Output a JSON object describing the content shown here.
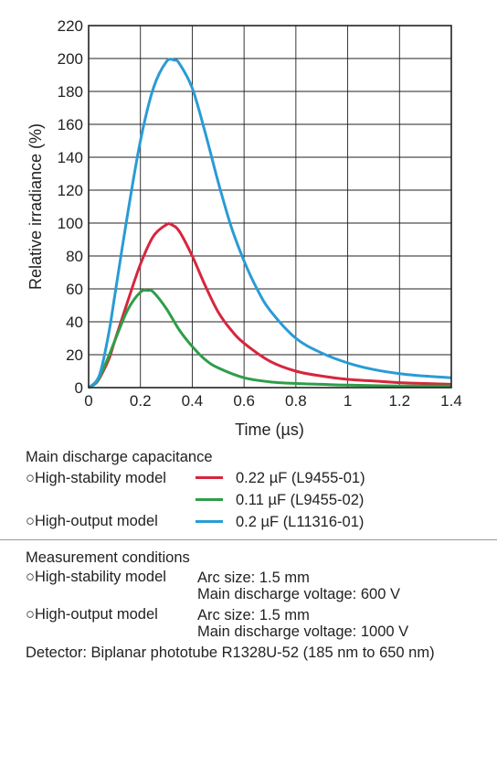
{
  "chart_data": {
    "type": "line",
    "xlabel": "Time (µs)",
    "ylabel": "Relative irradiance (%)",
    "xlim": [
      0,
      1.4
    ],
    "ylim": [
      0,
      220
    ],
    "xticks": [
      "0",
      "0.2",
      "0.4",
      "0.6",
      "0.8",
      "1",
      "1.2",
      "1.4"
    ],
    "yticks": [
      "0",
      "20",
      "40",
      "60",
      "80",
      "100",
      "120",
      "140",
      "160",
      "180",
      "200",
      "220"
    ],
    "grid": true,
    "series": [
      {
        "name": "0.22 µF (L9455-01)",
        "color": "#d7263d",
        "x": [
          0,
          0.03,
          0.05,
          0.08,
          0.1,
          0.15,
          0.2,
          0.25,
          0.3,
          0.32,
          0.35,
          0.4,
          0.45,
          0.5,
          0.55,
          0.6,
          0.7,
          0.8,
          0.9,
          1.0,
          1.1,
          1.2,
          1.3,
          1.4
        ],
        "y": [
          0,
          3,
          8,
          18,
          28,
          52,
          75,
          92,
          99,
          99,
          95,
          80,
          62,
          46,
          35,
          27,
          16,
          10,
          7,
          5,
          4,
          3,
          2.5,
          2
        ]
      },
      {
        "name": "0.11 µF (L9455-02)",
        "color": "#2e9e48",
        "x": [
          0,
          0.03,
          0.05,
          0.08,
          0.1,
          0.15,
          0.2,
          0.23,
          0.25,
          0.3,
          0.35,
          0.4,
          0.45,
          0.5,
          0.6,
          0.7,
          0.8,
          0.9,
          1.0,
          1.2,
          1.4
        ],
        "y": [
          0,
          3,
          9,
          20,
          28,
          47,
          58,
          59,
          58,
          48,
          35,
          25,
          17,
          12,
          6,
          3.5,
          2.5,
          2,
          1.5,
          1,
          1
        ]
      },
      {
        "name": "0.2 µF (L11316-01)",
        "color": "#2a9bd6",
        "x": [
          0,
          0.03,
          0.05,
          0.08,
          0.1,
          0.15,
          0.2,
          0.25,
          0.3,
          0.33,
          0.35,
          0.4,
          0.45,
          0.5,
          0.55,
          0.6,
          0.65,
          0.7,
          0.8,
          0.9,
          1.0,
          1.1,
          1.2,
          1.3,
          1.4
        ],
        "y": [
          0,
          4,
          12,
          35,
          55,
          105,
          150,
          182,
          198,
          199,
          197,
          182,
          155,
          125,
          98,
          77,
          60,
          47,
          30,
          21,
          15,
          11,
          8.5,
          7,
          6
        ]
      }
    ]
  },
  "legend": {
    "heading": "Main discharge capacitance",
    "stability_label": "○High-stability model",
    "output_label": "○High-output model",
    "entries": [
      "0.22 µF (L9455-01)",
      "0.11 µF (L9455-02)",
      "0.2 µF (L11316-01)"
    ],
    "colors": [
      "#d7263d",
      "#2e9e48",
      "#2a9bd6"
    ]
  },
  "conditions": {
    "heading": "Measurement conditions",
    "stability_label": "○High-stability model",
    "stability_arc": "Arc size: 1.5 mm",
    "stability_voltage": "Main discharge voltage: 600 V",
    "output_label": "○High-output model",
    "output_arc": "Arc size: 1.5 mm",
    "output_voltage": "Main discharge voltage: 1000 V",
    "detector": "Detector: Biplanar phototube R1328U-52 (185 nm to 650 nm)"
  }
}
